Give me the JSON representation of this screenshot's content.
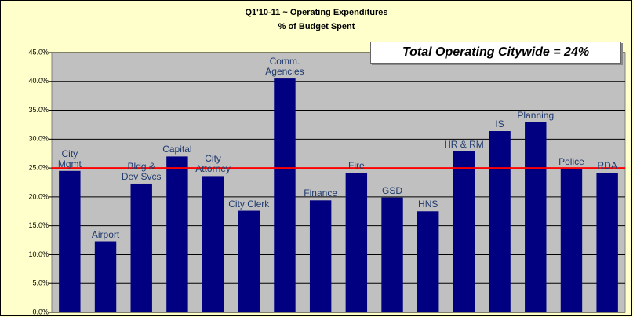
{
  "chart_data": {
    "type": "bar",
    "title": "Q1'10-11 ~ Operating Expenditures",
    "subtitle": "% of Budget Spent",
    "annotation": "Total Operating Citywide = 24%",
    "categories": [
      "City\nMgmt",
      "Airport",
      "Bldg &\nDev Svcs",
      "Capital",
      "City\nAttorney",
      "City Clerk",
      "Comm.\nAgencies",
      "Finance",
      "Fire",
      "GSD",
      "HNS",
      "HR & RM",
      "IS",
      "Planning",
      "Police",
      "RDA"
    ],
    "values": [
      24.5,
      12.3,
      22.3,
      27.0,
      23.6,
      17.6,
      40.5,
      19.4,
      24.2,
      19.9,
      17.5,
      27.9,
      31.4,
      32.9,
      24.9,
      24.2
    ],
    "color": "#000080",
    "reference_line": 25,
    "reference_color": "#ff0000",
    "ylim": [
      0,
      45
    ],
    "yticks": [
      {
        "value": 0,
        "label": "0.0%"
      },
      {
        "value": 5,
        "label": "5.0%"
      },
      {
        "value": 10,
        "label": "10.0%"
      },
      {
        "value": 15,
        "label": "15.0%"
      },
      {
        "value": 20,
        "label": "20.0%"
      },
      {
        "value": 25,
        "label": "25.0%"
      },
      {
        "value": 30,
        "label": "30.0%"
      },
      {
        "value": 35,
        "label": "35.0%"
      },
      {
        "value": 40,
        "label": "40.0%"
      },
      {
        "value": 45,
        "label": "45.0%"
      }
    ],
    "grid": true
  }
}
